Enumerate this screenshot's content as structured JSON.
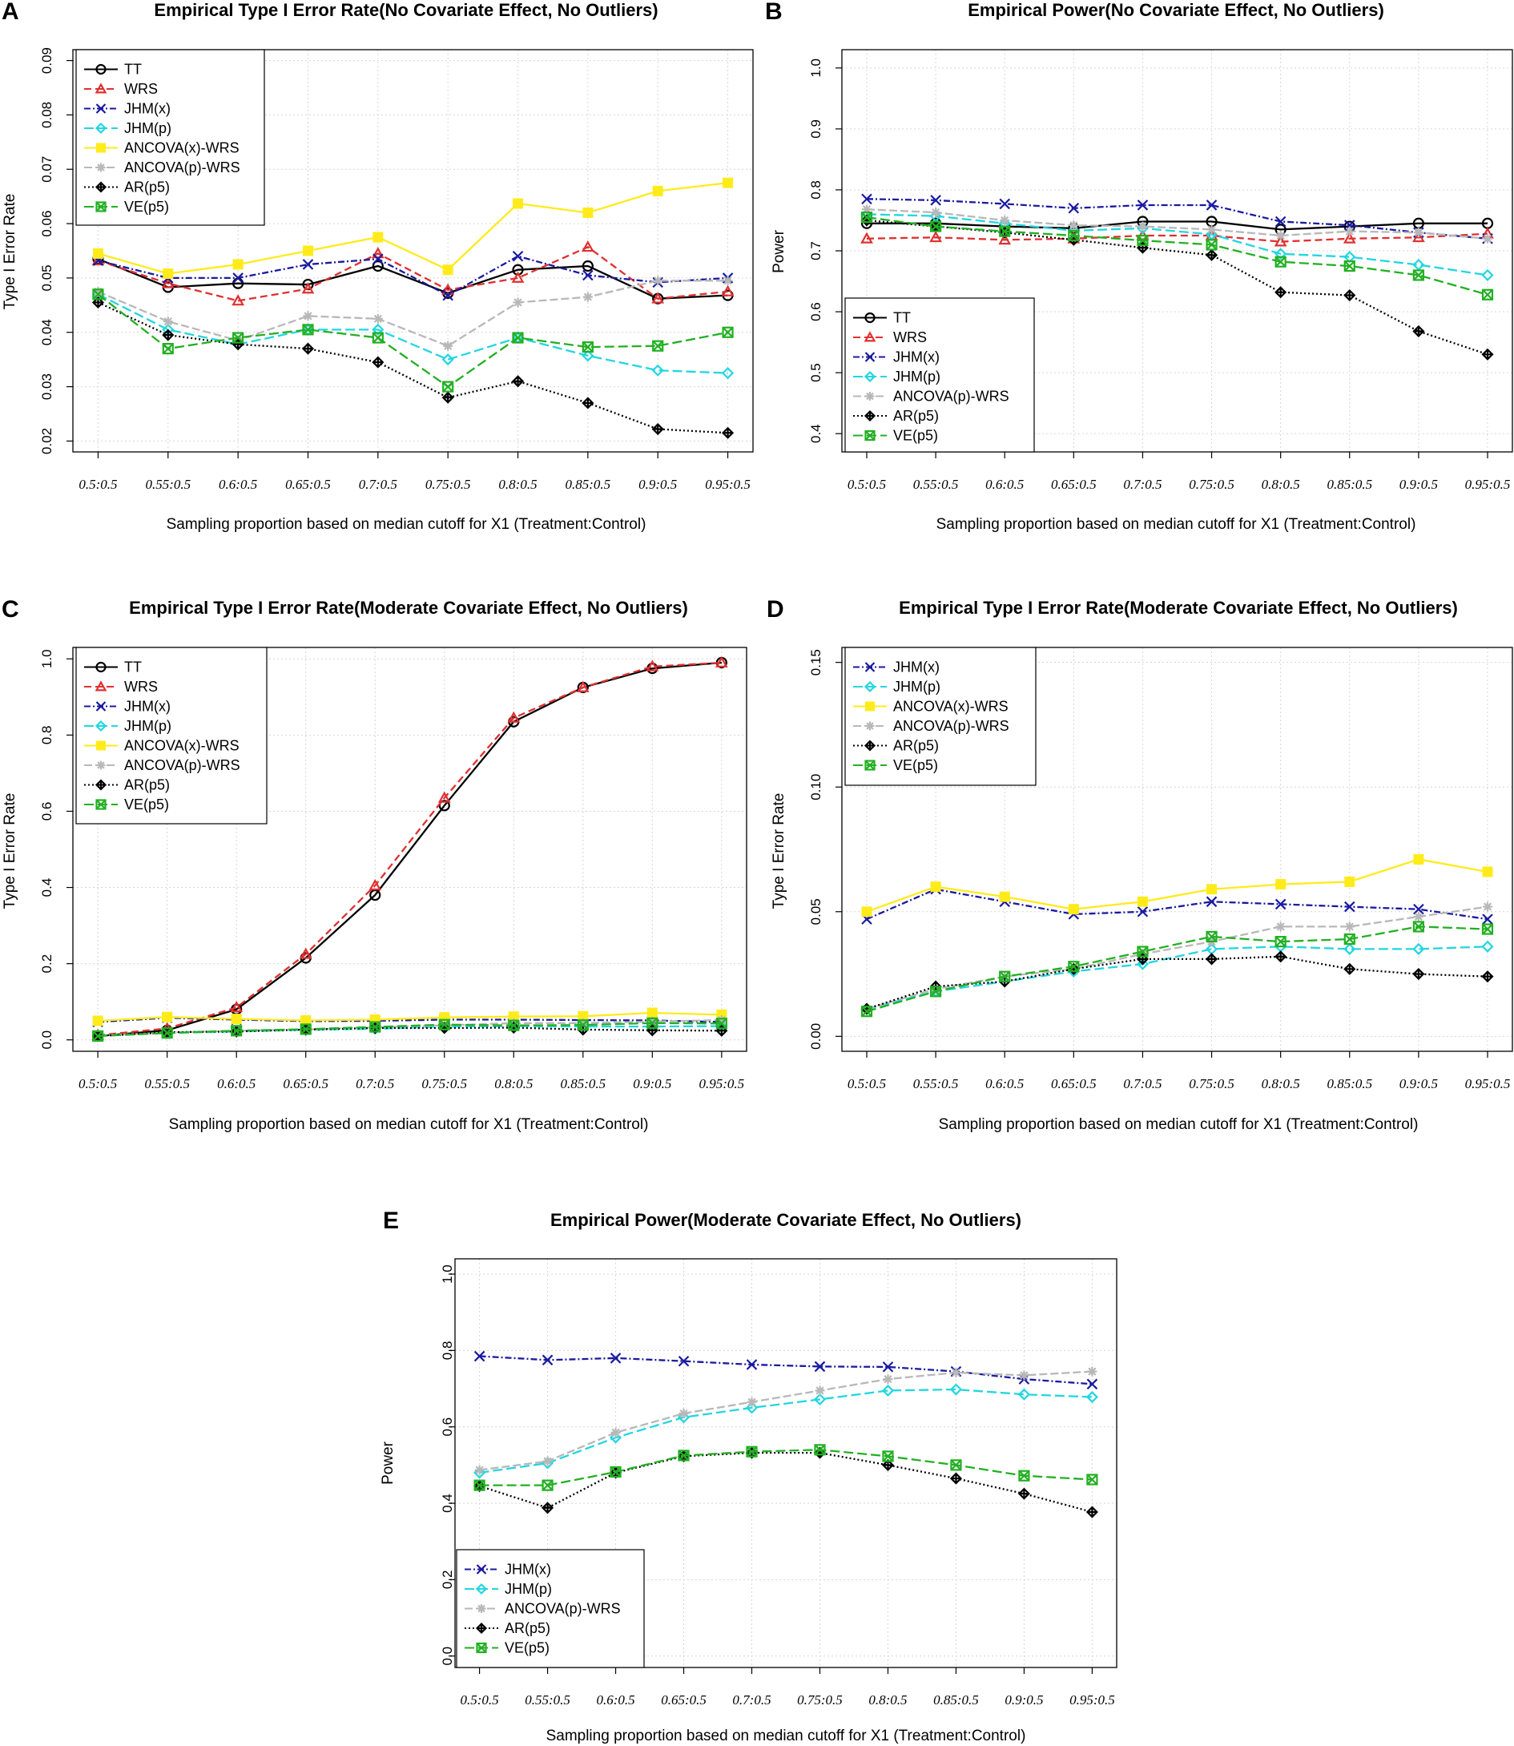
{
  "x_tick_labels": [
    "0.5:0.5",
    "0.55:0.5",
    "0.6:0.5",
    "0.65:0.5",
    "0.7:0.5",
    "0.75:0.5",
    "0.8:0.5",
    "0.85:0.5",
    "0.9:0.5",
    "0.95:0.5"
  ],
  "xlabel": "Sampling proportion based on median cutoff for X1 (Treatment:Control)",
  "methods": {
    "TT": {
      "color": "#000000",
      "dash": "",
      "marker": "circle"
    },
    "WRS": {
      "color": "#e03030",
      "dash": "9,5",
      "marker": "triangle"
    },
    "JHM(x)": {
      "color": "#1a1aa0",
      "dash": "8,3,2,3",
      "marker": "x"
    },
    "JHM(p)": {
      "color": "#22d6e0",
      "dash": "12,5",
      "marker": "diamond"
    },
    "ANCOVA(x)-WRS": {
      "color": "#ffeb1a",
      "dash": "",
      "marker": "square"
    },
    "ANCOVA(p)-WRS": {
      "color": "#b8b8b8",
      "dash": "10,4",
      "marker": "asterisk"
    },
    "AR(p5)": {
      "color": "#000000",
      "dash": "2,3",
      "marker": "diamondplus"
    },
    "VE(p5)": {
      "color": "#22b022",
      "dash": "12,5",
      "marker": "hourglass"
    }
  },
  "chart_data": [
    {
      "panel": "A",
      "type": "line",
      "title": "Empirical Type I Error Rate(No Covariate Effect, No Outliers)",
      "xlabel": "Sampling proportion based on median cutoff for X1 (Treatment:Control)",
      "ylabel": "Type I Error Rate",
      "ylim": [
        0.018,
        0.092
      ],
      "yticks": [
        0.02,
        0.03,
        0.04,
        0.05,
        0.06,
        0.07,
        0.08,
        0.09
      ],
      "ytick_labels": [
        "0.02",
        "0.03",
        "0.04",
        "0.05",
        "0.06",
        "0.07",
        "0.08",
        "0.09"
      ],
      "legend": [
        "TT",
        "WRS",
        "JHM(x)",
        "JHM(p)",
        "ANCOVA(x)-WRS",
        "ANCOVA(p)-WRS",
        "AR(p5)",
        "VE(p5)"
      ],
      "series": [
        {
          "name": "TT",
          "values": [
            0.0535,
            0.0483,
            0.049,
            0.0488,
            0.0522,
            0.0472,
            0.0515,
            0.0522,
            0.0462,
            0.0468
          ]
        },
        {
          "name": "WRS",
          "values": [
            0.0532,
            0.049,
            0.0458,
            0.048,
            0.0545,
            0.0478,
            0.05,
            0.0557,
            0.0462,
            0.0475
          ]
        },
        {
          "name": "JHM(x)",
          "values": [
            0.0532,
            0.05,
            0.05,
            0.0525,
            0.0535,
            0.0468,
            0.054,
            0.0505,
            0.0492,
            0.05
          ]
        },
        {
          "name": "JHM(p)",
          "values": [
            0.047,
            0.0405,
            0.0378,
            0.0405,
            0.0405,
            0.035,
            0.039,
            0.0357,
            0.033,
            0.0325
          ]
        },
        {
          "name": "ANCOVA(x)-WRS",
          "values": [
            0.0545,
            0.0508,
            0.0525,
            0.055,
            0.0575,
            0.0515,
            0.0637,
            0.062,
            0.066,
            0.0675
          ]
        },
        {
          "name": "ANCOVA(p)-WRS",
          "values": [
            0.0475,
            0.042,
            0.0385,
            0.043,
            0.0425,
            0.0375,
            0.0455,
            0.0465,
            0.0495,
            0.0495
          ]
        },
        {
          "name": "AR(p5)",
          "values": [
            0.0455,
            0.0395,
            0.0378,
            0.037,
            0.0345,
            0.028,
            0.031,
            0.027,
            0.0222,
            0.0215
          ]
        },
        {
          "name": "VE(p5)",
          "values": [
            0.047,
            0.037,
            0.039,
            0.0405,
            0.039,
            0.03,
            0.039,
            0.0373,
            0.0375,
            0.04
          ]
        }
      ]
    },
    {
      "panel": "B",
      "type": "line",
      "title": "Empirical Power(No Covariate Effect, No Outliers)",
      "xlabel": "Sampling proportion based on median cutoff for X1 (Treatment:Control)",
      "ylabel": "Power",
      "ylim": [
        0.37,
        1.03
      ],
      "yticks": [
        0.4,
        0.5,
        0.6,
        0.7,
        0.8,
        0.9,
        1.0
      ],
      "ytick_labels": [
        "0.4",
        "0.5",
        "0.6",
        "0.7",
        "0.8",
        "0.9",
        "1.0"
      ],
      "legend": [
        "TT",
        "WRS",
        "JHM(x)",
        "JHM(p)",
        "ANCOVA(p)-WRS",
        "AR(p5)",
        "VE(p5)"
      ],
      "series": [
        {
          "name": "TT",
          "values": [
            0.745,
            0.745,
            0.74,
            0.737,
            0.748,
            0.748,
            0.735,
            0.74,
            0.745,
            0.745
          ]
        },
        {
          "name": "WRS",
          "values": [
            0.72,
            0.722,
            0.718,
            0.72,
            0.725,
            0.725,
            0.715,
            0.72,
            0.722,
            0.728
          ]
        },
        {
          "name": "JHM(x)",
          "values": [
            0.785,
            0.783,
            0.777,
            0.77,
            0.775,
            0.775,
            0.748,
            0.742,
            0.73,
            0.72
          ]
        },
        {
          "name": "JHM(p)",
          "values": [
            0.76,
            0.757,
            0.745,
            0.733,
            0.737,
            0.727,
            0.695,
            0.69,
            0.677,
            0.66
          ]
        },
        {
          "name": "ANCOVA(p)-WRS",
          "values": [
            0.768,
            0.763,
            0.75,
            0.742,
            0.74,
            0.735,
            0.725,
            0.732,
            0.73,
            0.72
          ]
        },
        {
          "name": "AR(p5)",
          "values": [
            0.75,
            0.74,
            0.73,
            0.718,
            0.705,
            0.693,
            0.632,
            0.627,
            0.568,
            0.53
          ]
        },
        {
          "name": "VE(p5)",
          "values": [
            0.755,
            0.74,
            0.732,
            0.725,
            0.717,
            0.71,
            0.682,
            0.675,
            0.66,
            0.628
          ]
        }
      ]
    },
    {
      "panel": "C",
      "type": "line",
      "title": "Empirical Type I Error Rate(Moderate Covariate Effect, No Outliers)",
      "xlabel": "Sampling proportion based on median cutoff for X1 (Treatment:Control)",
      "ylabel": "Type I Error Rate",
      "ylim": [
        -0.03,
        1.03
      ],
      "yticks": [
        0.0,
        0.2,
        0.4,
        0.6,
        0.8,
        1.0
      ],
      "ytick_labels": [
        "0.0",
        "0.2",
        "0.4",
        "0.6",
        "0.8",
        "1.0"
      ],
      "legend": [
        "TT",
        "WRS",
        "JHM(x)",
        "JHM(p)",
        "ANCOVA(x)-WRS",
        "ANCOVA(p)-WRS",
        "AR(p5)",
        "VE(p5)"
      ],
      "series": [
        {
          "name": "TT",
          "values": [
            0.01,
            0.025,
            0.08,
            0.215,
            0.38,
            0.615,
            0.835,
            0.925,
            0.975,
            0.99
          ]
        },
        {
          "name": "WRS",
          "values": [
            0.012,
            0.03,
            0.085,
            0.225,
            0.405,
            0.635,
            0.845,
            0.925,
            0.98,
            0.99
          ]
        },
        {
          "name": "JHM(x)",
          "values": [
            0.047,
            0.058,
            0.053,
            0.049,
            0.05,
            0.053,
            0.053,
            0.052,
            0.051,
            0.047
          ]
        },
        {
          "name": "JHM(p)",
          "values": [
            0.011,
            0.018,
            0.022,
            0.026,
            0.029,
            0.035,
            0.036,
            0.035,
            0.035,
            0.036
          ]
        },
        {
          "name": "ANCOVA(x)-WRS",
          "values": [
            0.05,
            0.06,
            0.055,
            0.051,
            0.053,
            0.059,
            0.061,
            0.062,
            0.071,
            0.066
          ]
        },
        {
          "name": "ANCOVA(p)-WRS",
          "values": [
            0.011,
            0.019,
            0.024,
            0.027,
            0.033,
            0.038,
            0.044,
            0.044,
            0.048,
            0.052
          ]
        },
        {
          "name": "AR(p5)",
          "values": [
            0.01,
            0.02,
            0.022,
            0.027,
            0.031,
            0.031,
            0.032,
            0.027,
            0.025,
            0.024
          ]
        },
        {
          "name": "VE(p5)",
          "values": [
            0.01,
            0.018,
            0.024,
            0.028,
            0.034,
            0.04,
            0.038,
            0.039,
            0.044,
            0.043
          ]
        }
      ]
    },
    {
      "panel": "D",
      "type": "line",
      "title": "Empirical Type I Error Rate(Moderate Covariate Effect, No Outliers)",
      "xlabel": "Sampling proportion based on median cutoff for X1 (Treatment:Control)",
      "ylabel": "Type I Error Rate",
      "ylim": [
        -0.006,
        0.156
      ],
      "yticks": [
        0.0,
        0.05,
        0.1,
        0.15
      ],
      "ytick_labels": [
        "0.00",
        "0.05",
        "0.10",
        "0.15"
      ],
      "legend": [
        "JHM(x)",
        "JHM(p)",
        "ANCOVA(x)-WRS",
        "ANCOVA(p)-WRS",
        "AR(p5)",
        "VE(p5)"
      ],
      "series": [
        {
          "name": "JHM(x)",
          "values": [
            0.047,
            0.059,
            0.054,
            0.049,
            0.05,
            0.054,
            0.053,
            0.052,
            0.051,
            0.047
          ]
        },
        {
          "name": "JHM(p)",
          "values": [
            0.011,
            0.018,
            0.022,
            0.026,
            0.029,
            0.035,
            0.036,
            0.035,
            0.035,
            0.036
          ]
        },
        {
          "name": "ANCOVA(x)-WRS",
          "values": [
            0.05,
            0.06,
            0.056,
            0.051,
            0.054,
            0.059,
            0.061,
            0.062,
            0.071,
            0.066
          ]
        },
        {
          "name": "ANCOVA(p)-WRS",
          "values": [
            0.011,
            0.019,
            0.024,
            0.027,
            0.033,
            0.038,
            0.044,
            0.044,
            0.048,
            0.052
          ]
        },
        {
          "name": "AR(p5)",
          "values": [
            0.011,
            0.02,
            0.022,
            0.027,
            0.031,
            0.031,
            0.032,
            0.027,
            0.025,
            0.024
          ]
        },
        {
          "name": "VE(p5)",
          "values": [
            0.01,
            0.018,
            0.024,
            0.028,
            0.034,
            0.04,
            0.038,
            0.039,
            0.044,
            0.043
          ]
        }
      ]
    },
    {
      "panel": "E",
      "type": "line",
      "title": "Empirical Power(Moderate Covariate Effect, No Outliers)",
      "xlabel": "Sampling proportion based on median cutoff for X1 (Treatment:Control)",
      "ylabel": "Power",
      "ylim": [
        -0.03,
        1.04
      ],
      "yticks": [
        0.0,
        0.2,
        0.4,
        0.6,
        0.8,
        1.0
      ],
      "ytick_labels": [
        "0.0",
        "0.2",
        "0.4",
        "0.6",
        "0.8",
        "1.0"
      ],
      "legend": [
        "JHM(x)",
        "JHM(p)",
        "ANCOVA(p)-WRS",
        "AR(p5)",
        "VE(p5)"
      ],
      "series": [
        {
          "name": "JHM(x)",
          "values": [
            0.785,
            0.775,
            0.78,
            0.772,
            0.763,
            0.758,
            0.757,
            0.745,
            0.725,
            0.712
          ]
        },
        {
          "name": "JHM(p)",
          "values": [
            0.48,
            0.505,
            0.572,
            0.625,
            0.65,
            0.672,
            0.695,
            0.698,
            0.685,
            0.678
          ]
        },
        {
          "name": "ANCOVA(p)-WRS",
          "values": [
            0.487,
            0.51,
            0.585,
            0.635,
            0.665,
            0.695,
            0.725,
            0.742,
            0.735,
            0.745
          ]
        },
        {
          "name": "AR(p5)",
          "values": [
            0.445,
            0.388,
            0.48,
            0.523,
            0.532,
            0.532,
            0.5,
            0.465,
            0.425,
            0.377
          ]
        },
        {
          "name": "VE(p5)",
          "values": [
            0.447,
            0.447,
            0.482,
            0.525,
            0.535,
            0.54,
            0.523,
            0.5,
            0.472,
            0.462
          ]
        }
      ]
    }
  ]
}
